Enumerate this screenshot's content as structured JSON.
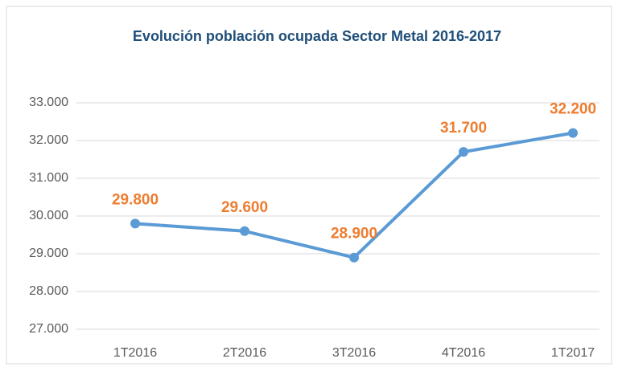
{
  "chart_data": {
    "type": "line",
    "title": "Evolución población ocupada Sector Metal 2016-2017",
    "categories": [
      "1T2016",
      "2T2016",
      "3T2016",
      "4T2016",
      "1T2017"
    ],
    "series": [
      {
        "name": "Población ocupada",
        "color": "#5b9bd5",
        "values": [
          29800,
          29600,
          28900,
          31700,
          32200
        ],
        "value_labels": [
          "29.800",
          "29.600",
          "28.900",
          "31.700",
          "32.200"
        ]
      }
    ],
    "ylim": [
      27000,
      33000
    ],
    "yticks": [
      {
        "value": 27000,
        "label": "27.000"
      },
      {
        "value": 28000,
        "label": "28.000"
      },
      {
        "value": 29000,
        "label": "29.000"
      },
      {
        "value": 30000,
        "label": "30.000"
      },
      {
        "value": 31000,
        "label": "31.000"
      },
      {
        "value": 32000,
        "label": "32.000"
      },
      {
        "value": 33000,
        "label": "33.000"
      }
    ],
    "grid": true,
    "label_color": "#ed7d31"
  }
}
